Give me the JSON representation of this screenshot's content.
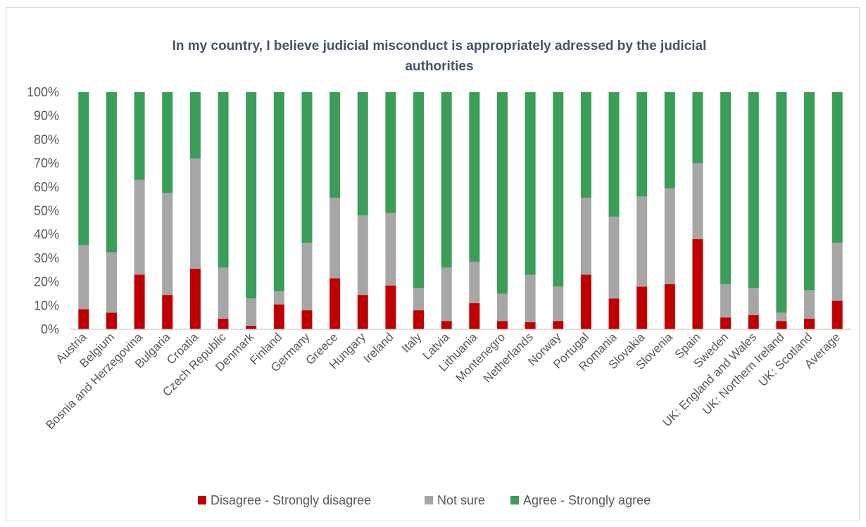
{
  "chart_data": {
    "type": "bar",
    "stacked": true,
    "title_lines": [
      "In my country, I believe judicial misconduct is appropriately adressed by the judicial",
      "authorities"
    ],
    "xlabel": "",
    "ylabel": "",
    "ylim": [
      0,
      100
    ],
    "y_ticks": [
      "0%",
      "10%",
      "20%",
      "30%",
      "40%",
      "50%",
      "60%",
      "70%",
      "80%",
      "90%",
      "100%"
    ],
    "grid": false,
    "legend_position": "bottom",
    "categories": [
      "Austria",
      "Belgium",
      "Bosnia and Herzegovina",
      "Bulgaria",
      "Croatia",
      "Czech Republic",
      "Denmark",
      "Finland",
      "Germany",
      "Greece",
      "Hungary",
      "Ireland",
      "Italy",
      "Latvia",
      "Lithuania",
      "Montenegro",
      "Netherlands",
      "Norway",
      "Portugal",
      "Romania",
      "Slovakia",
      "Slovenia",
      "Spain",
      "Sweden",
      "UK: England and Wales",
      "UK: Northern Ireland",
      "UK: Scotland",
      "Average"
    ],
    "series": [
      {
        "name": "Disagree - Strongly disagree",
        "color": "#c00000",
        "values": [
          8.5,
          7,
          23,
          14.5,
          25.5,
          4.5,
          1.5,
          10.5,
          8,
          21.5,
          14.5,
          18.5,
          8,
          3.5,
          11,
          3.5,
          3,
          3.5,
          23,
          13,
          18,
          19,
          38,
          5,
          6,
          3.5,
          4.5,
          12
        ]
      },
      {
        "name": "Not sure",
        "color": "#a6a6a6",
        "values": [
          27,
          25.5,
          40,
          43,
          46.5,
          21.5,
          11.5,
          5.5,
          28.5,
          34,
          33.5,
          30.5,
          9.5,
          22.5,
          17.5,
          11.5,
          20,
          14.5,
          32.5,
          34.5,
          38,
          40.5,
          32,
          14,
          11.5,
          3.5,
          12,
          24.5
        ]
      },
      {
        "name": "Agree - Strongly agree",
        "color": "#3a9e58",
        "values": [
          64.5,
          67.5,
          37,
          42.5,
          28,
          74,
          87,
          84,
          63.5,
          44.5,
          52,
          51,
          82.5,
          74,
          71.5,
          85,
          77,
          82,
          44.5,
          52.5,
          44,
          40.5,
          30,
          81,
          82.5,
          93,
          83.5,
          63.5
        ]
      }
    ]
  }
}
